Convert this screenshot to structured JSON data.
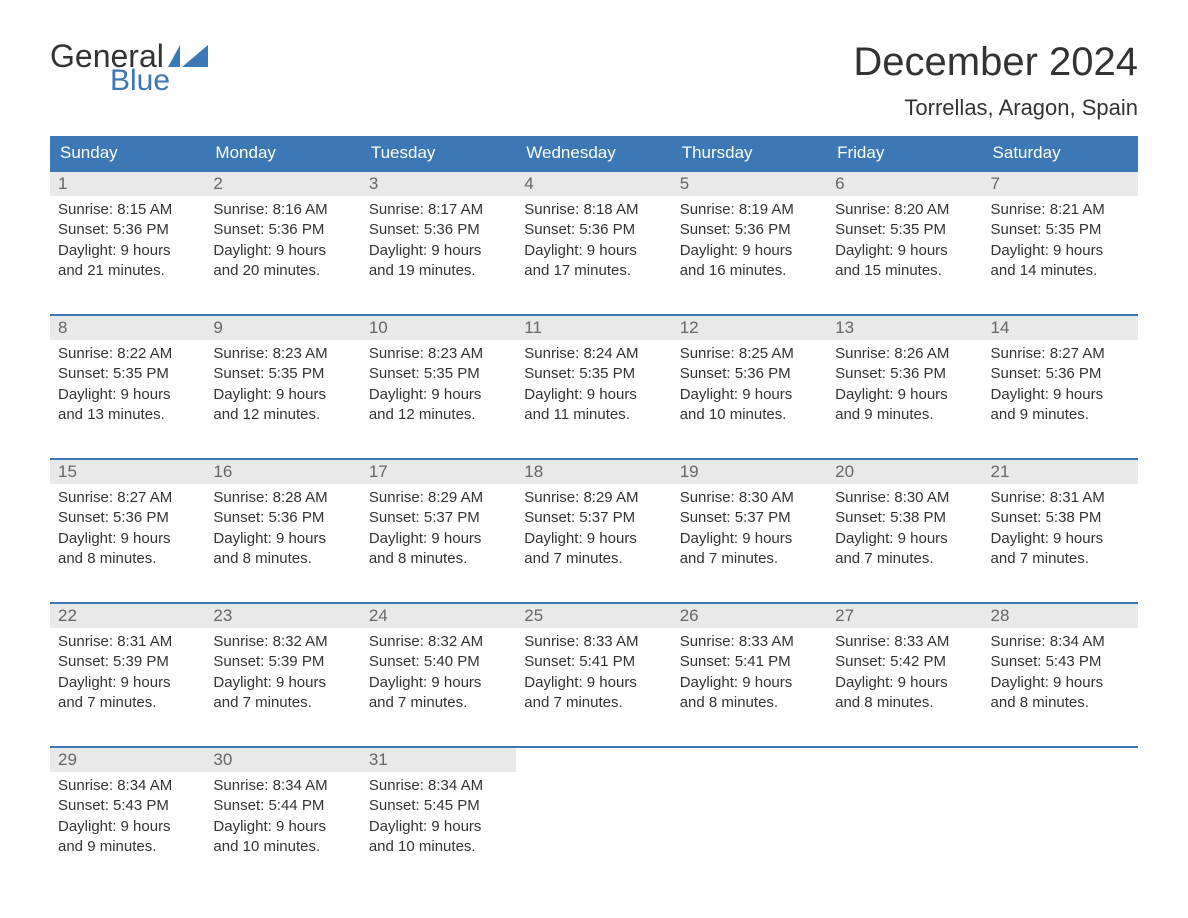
{
  "brand": {
    "line1": "General",
    "line2": "Blue",
    "text_color": "#333333",
    "blue_color": "#3b78b5"
  },
  "title": "December 2024",
  "location": "Torrellas, Aragon, Spain",
  "colors": {
    "header_bg": "#3b78b5",
    "header_text": "#ffffff",
    "daynum_bg": "#e9e9e9",
    "daynum_text": "#666666",
    "body_text": "#333333",
    "week_border": "#3b78b5",
    "page_bg": "#ffffff"
  },
  "typography": {
    "title_fontsize": 40,
    "location_fontsize": 22,
    "day_header_fontsize": 17,
    "body_fontsize": 15
  },
  "day_names": [
    "Sunday",
    "Monday",
    "Tuesday",
    "Wednesday",
    "Thursday",
    "Friday",
    "Saturday"
  ],
  "weeks": [
    [
      {
        "n": "1",
        "sunrise": "8:15 AM",
        "sunset": "5:36 PM",
        "daylight": "9 hours and 21 minutes."
      },
      {
        "n": "2",
        "sunrise": "8:16 AM",
        "sunset": "5:36 PM",
        "daylight": "9 hours and 20 minutes."
      },
      {
        "n": "3",
        "sunrise": "8:17 AM",
        "sunset": "5:36 PM",
        "daylight": "9 hours and 19 minutes."
      },
      {
        "n": "4",
        "sunrise": "8:18 AM",
        "sunset": "5:36 PM",
        "daylight": "9 hours and 17 minutes."
      },
      {
        "n": "5",
        "sunrise": "8:19 AM",
        "sunset": "5:36 PM",
        "daylight": "9 hours and 16 minutes."
      },
      {
        "n": "6",
        "sunrise": "8:20 AM",
        "sunset": "5:35 PM",
        "daylight": "9 hours and 15 minutes."
      },
      {
        "n": "7",
        "sunrise": "8:21 AM",
        "sunset": "5:35 PM",
        "daylight": "9 hours and 14 minutes."
      }
    ],
    [
      {
        "n": "8",
        "sunrise": "8:22 AM",
        "sunset": "5:35 PM",
        "daylight": "9 hours and 13 minutes."
      },
      {
        "n": "9",
        "sunrise": "8:23 AM",
        "sunset": "5:35 PM",
        "daylight": "9 hours and 12 minutes."
      },
      {
        "n": "10",
        "sunrise": "8:23 AM",
        "sunset": "5:35 PM",
        "daylight": "9 hours and 12 minutes."
      },
      {
        "n": "11",
        "sunrise": "8:24 AM",
        "sunset": "5:35 PM",
        "daylight": "9 hours and 11 minutes."
      },
      {
        "n": "12",
        "sunrise": "8:25 AM",
        "sunset": "5:36 PM",
        "daylight": "9 hours and 10 minutes."
      },
      {
        "n": "13",
        "sunrise": "8:26 AM",
        "sunset": "5:36 PM",
        "daylight": "9 hours and 9 minutes."
      },
      {
        "n": "14",
        "sunrise": "8:27 AM",
        "sunset": "5:36 PM",
        "daylight": "9 hours and 9 minutes."
      }
    ],
    [
      {
        "n": "15",
        "sunrise": "8:27 AM",
        "sunset": "5:36 PM",
        "daylight": "9 hours and 8 minutes."
      },
      {
        "n": "16",
        "sunrise": "8:28 AM",
        "sunset": "5:36 PM",
        "daylight": "9 hours and 8 minutes."
      },
      {
        "n": "17",
        "sunrise": "8:29 AM",
        "sunset": "5:37 PM",
        "daylight": "9 hours and 8 minutes."
      },
      {
        "n": "18",
        "sunrise": "8:29 AM",
        "sunset": "5:37 PM",
        "daylight": "9 hours and 7 minutes."
      },
      {
        "n": "19",
        "sunrise": "8:30 AM",
        "sunset": "5:37 PM",
        "daylight": "9 hours and 7 minutes."
      },
      {
        "n": "20",
        "sunrise": "8:30 AM",
        "sunset": "5:38 PM",
        "daylight": "9 hours and 7 minutes."
      },
      {
        "n": "21",
        "sunrise": "8:31 AM",
        "sunset": "5:38 PM",
        "daylight": "9 hours and 7 minutes."
      }
    ],
    [
      {
        "n": "22",
        "sunrise": "8:31 AM",
        "sunset": "5:39 PM",
        "daylight": "9 hours and 7 minutes."
      },
      {
        "n": "23",
        "sunrise": "8:32 AM",
        "sunset": "5:39 PM",
        "daylight": "9 hours and 7 minutes."
      },
      {
        "n": "24",
        "sunrise": "8:32 AM",
        "sunset": "5:40 PM",
        "daylight": "9 hours and 7 minutes."
      },
      {
        "n": "25",
        "sunrise": "8:33 AM",
        "sunset": "5:41 PM",
        "daylight": "9 hours and 7 minutes."
      },
      {
        "n": "26",
        "sunrise": "8:33 AM",
        "sunset": "5:41 PM",
        "daylight": "9 hours and 8 minutes."
      },
      {
        "n": "27",
        "sunrise": "8:33 AM",
        "sunset": "5:42 PM",
        "daylight": "9 hours and 8 minutes."
      },
      {
        "n": "28",
        "sunrise": "8:34 AM",
        "sunset": "5:43 PM",
        "daylight": "9 hours and 8 minutes."
      }
    ],
    [
      {
        "n": "29",
        "sunrise": "8:34 AM",
        "sunset": "5:43 PM",
        "daylight": "9 hours and 9 minutes."
      },
      {
        "n": "30",
        "sunrise": "8:34 AM",
        "sunset": "5:44 PM",
        "daylight": "9 hours and 10 minutes."
      },
      {
        "n": "31",
        "sunrise": "8:34 AM",
        "sunset": "5:45 PM",
        "daylight": "9 hours and 10 minutes."
      },
      null,
      null,
      null,
      null
    ]
  ],
  "labels": {
    "sunrise": "Sunrise: ",
    "sunset": "Sunset: ",
    "daylight": "Daylight: "
  }
}
